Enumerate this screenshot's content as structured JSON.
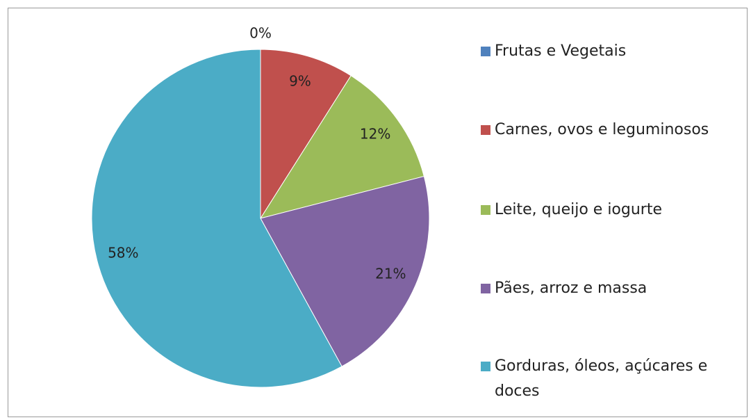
{
  "chart_data": {
    "type": "pie",
    "categories": [
      "Frutas e Vegetais",
      "Carnes, ovos e leguminosos",
      "Leite, queijo e iogurte",
      "Pães, arroz e massa",
      "Gorduras, óleos, açúcares e doces"
    ],
    "values": [
      0,
      9,
      12,
      21,
      58
    ],
    "value_labels": [
      "0%",
      "9%",
      "12%",
      "21%",
      "58%"
    ],
    "colors": [
      "#4f81bd",
      "#c0504d",
      "#9bbb59",
      "#8064a2",
      "#4bacc6"
    ],
    "legend": "right"
  }
}
